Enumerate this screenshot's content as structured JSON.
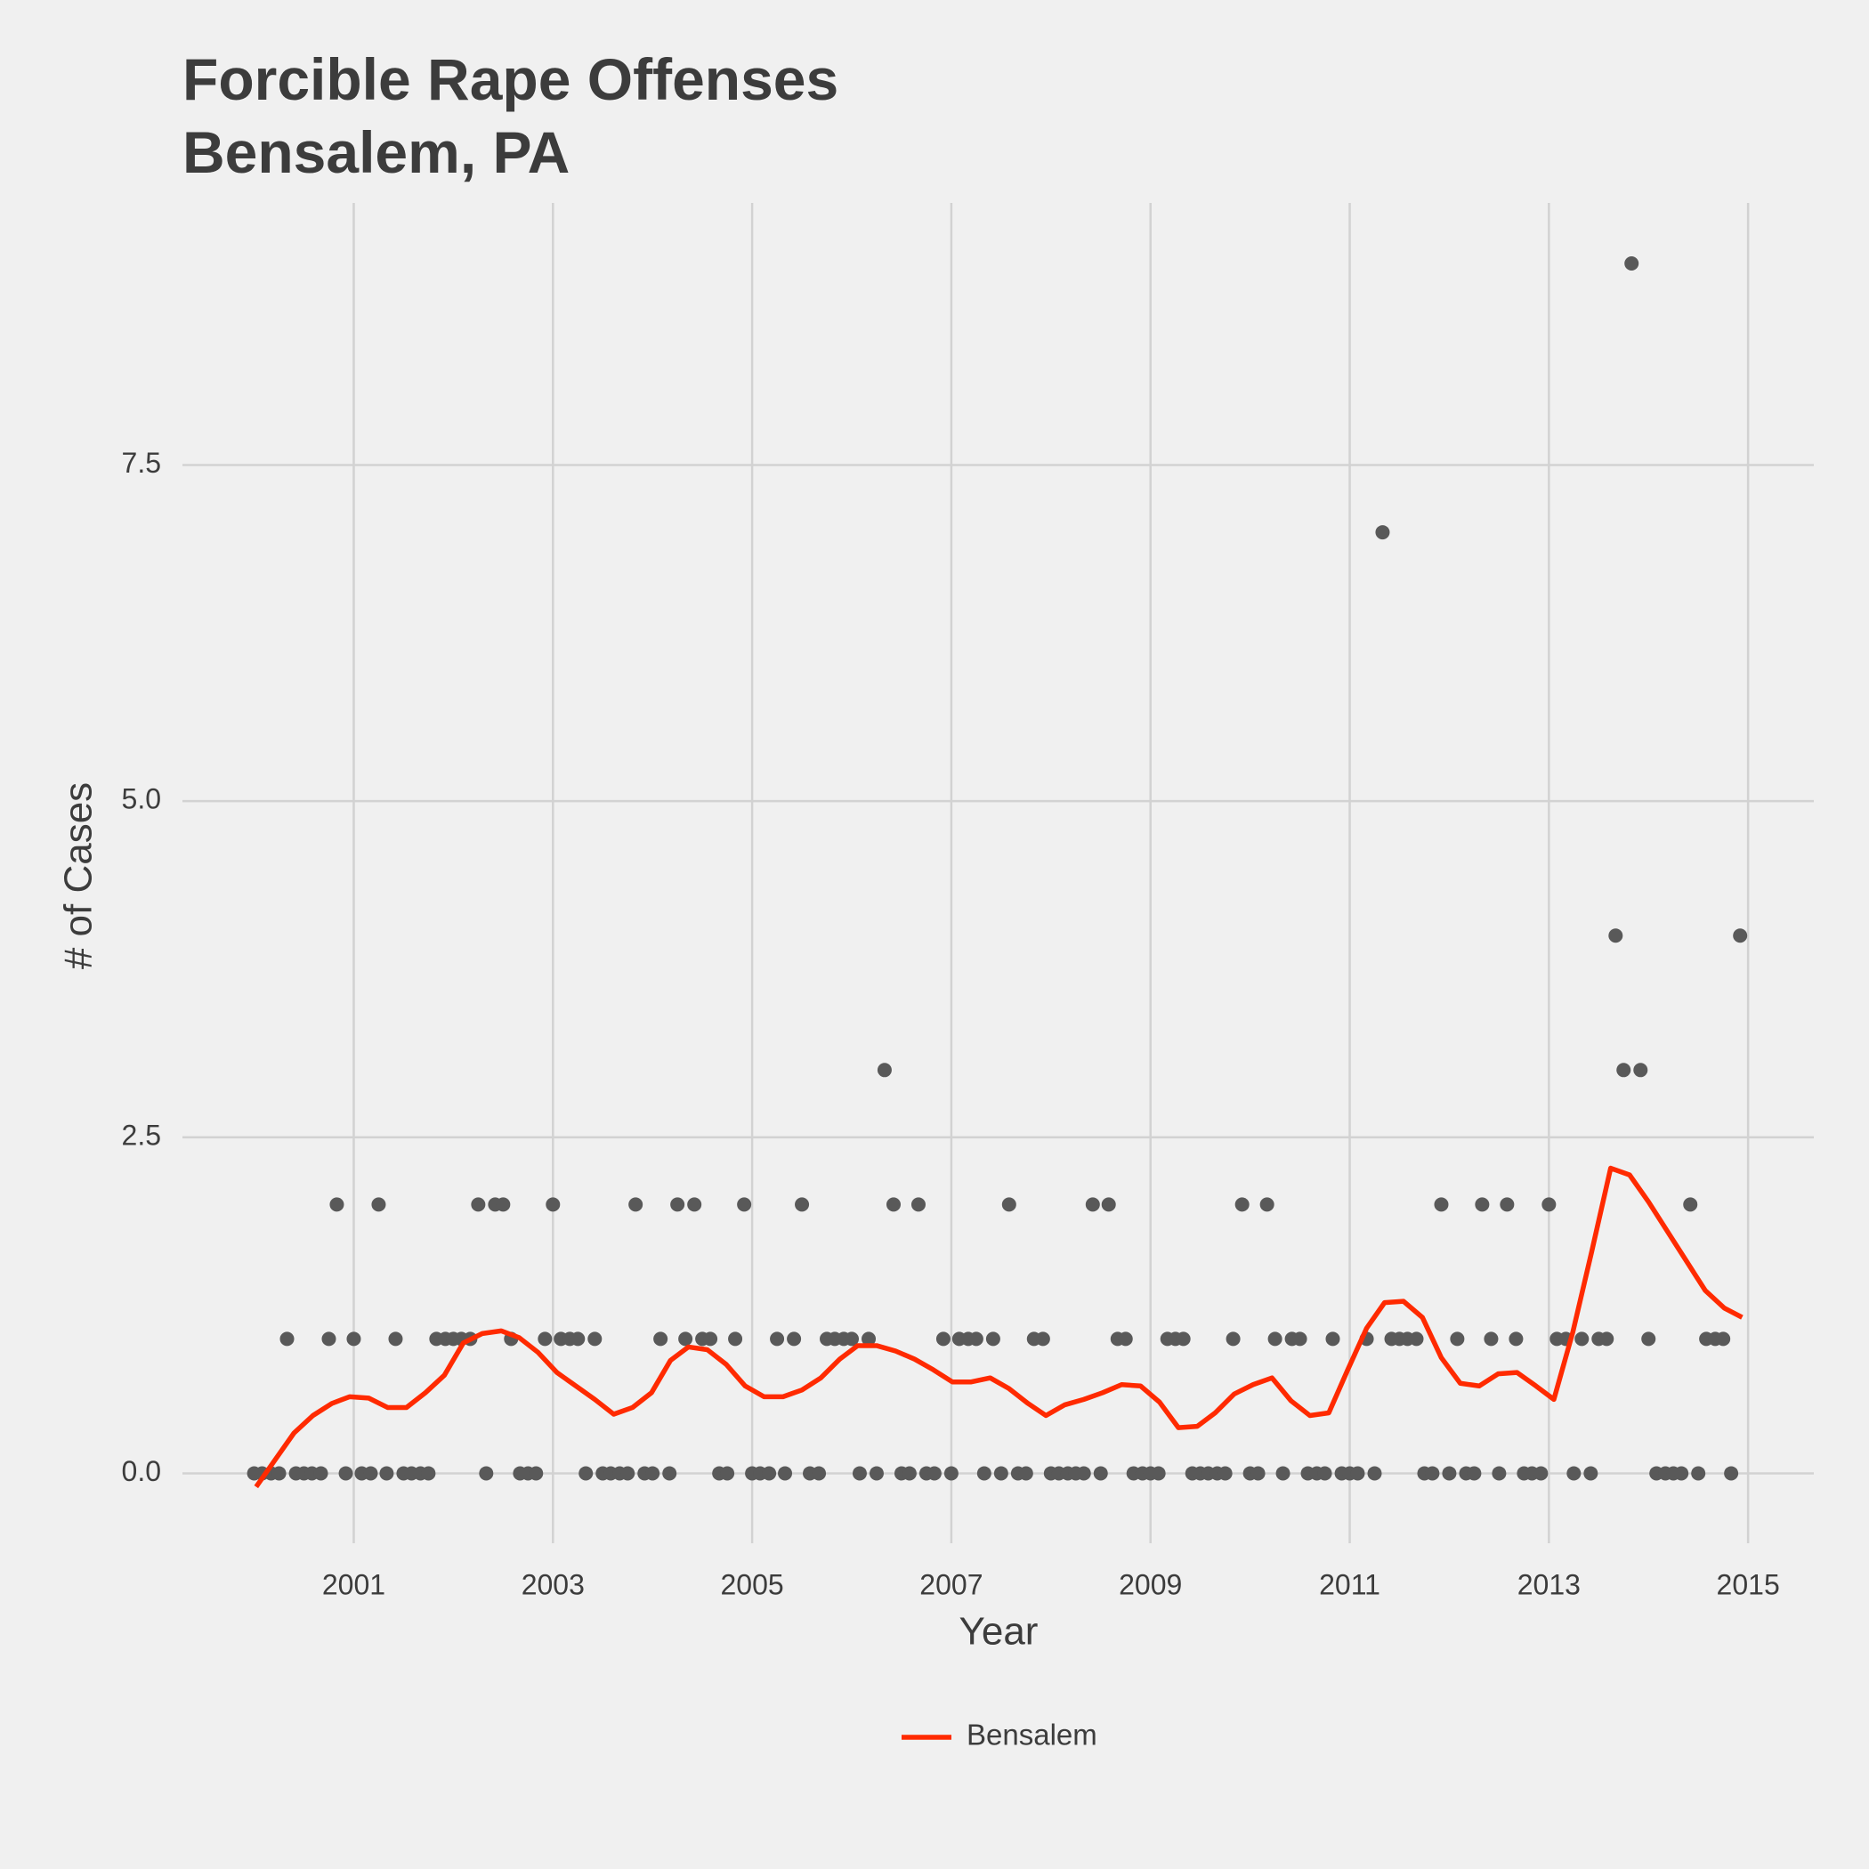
{
  "chart_data": {
    "type": "scatter",
    "title": "Forcible Rape Offenses",
    "subtitle": "Bensalem, PA",
    "x_label": "Year",
    "y_label": "# of Cases",
    "xlim": [
      1999.28,
      2015.66
    ],
    "ylim": [
      -0.52,
      9.45
    ],
    "xticks": [
      2001,
      2003,
      2005,
      2007,
      2009,
      2011,
      2013,
      2015
    ],
    "yticks": [
      {
        "value": 0,
        "label": "0.0"
      },
      2.5,
      {
        "value": 5,
        "label": "5.0"
      },
      7.5
    ],
    "grid": true,
    "legend_position": "bottom",
    "series": [
      {
        "type": "scatter",
        "color": "#595959",
        "x": [
          2000.0,
          2000.08,
          2000.17,
          2000.25,
          2000.33,
          2000.42,
          2000.5,
          2000.58,
          2000.67,
          2000.75,
          2000.83,
          2000.92,
          2001.0,
          2001.08,
          2001.17,
          2001.25,
          2001.33,
          2001.42,
          2001.5,
          2001.58,
          2001.67,
          2001.75,
          2001.83,
          2001.92,
          2002.0,
          2002.08,
          2002.17,
          2002.25,
          2002.33,
          2002.42,
          2002.5,
          2002.58,
          2002.67,
          2002.75,
          2002.83,
          2002.92,
          2003.0,
          2003.08,
          2003.17,
          2003.25,
          2003.33,
          2003.42,
          2003.5,
          2003.58,
          2003.67,
          2003.75,
          2003.83,
          2003.92,
          2004.0,
          2004.08,
          2004.17,
          2004.25,
          2004.33,
          2004.42,
          2004.5,
          2004.58,
          2004.67,
          2004.75,
          2004.83,
          2004.92,
          2005.0,
          2005.08,
          2005.17,
          2005.25,
          2005.33,
          2005.42,
          2005.5,
          2005.58,
          2005.67,
          2005.75,
          2005.83,
          2005.92,
          2006.0,
          2006.08,
          2006.17,
          2006.25,
          2006.33,
          2006.42,
          2006.5,
          2006.58,
          2006.67,
          2006.75,
          2006.83,
          2006.92,
          2007.0,
          2007.08,
          2007.17,
          2007.25,
          2007.33,
          2007.42,
          2007.5,
          2007.58,
          2007.67,
          2007.75,
          2007.83,
          2007.92,
          2008.0,
          2008.08,
          2008.17,
          2008.25,
          2008.33,
          2008.42,
          2008.5,
          2008.58,
          2008.67,
          2008.75,
          2008.83,
          2008.92,
          2009.0,
          2009.08,
          2009.17,
          2009.25,
          2009.33,
          2009.42,
          2009.5,
          2009.58,
          2009.67,
          2009.75,
          2009.83,
          2009.92,
          2010.0,
          2010.08,
          2010.17,
          2010.25,
          2010.33,
          2010.42,
          2010.5,
          2010.58,
          2010.67,
          2010.75,
          2010.83,
          2010.92,
          2011.0,
          2011.08,
          2011.17,
          2011.25,
          2011.33,
          2011.42,
          2011.5,
          2011.58,
          2011.67,
          2011.75,
          2011.83,
          2011.92,
          2012.0,
          2012.08,
          2012.17,
          2012.25,
          2012.33,
          2012.42,
          2012.5,
          2012.58,
          2012.67,
          2012.75,
          2012.83,
          2012.92,
          2013.0,
          2013.08,
          2013.17,
          2013.25,
          2013.33,
          2013.42,
          2013.5,
          2013.58,
          2013.67,
          2013.75,
          2013.83,
          2013.92,
          2014.0,
          2014.08,
          2014.17,
          2014.25,
          2014.33,
          2014.42,
          2014.5,
          2014.58,
          2014.67,
          2014.75,
          2014.83,
          2014.92
        ],
        "values": [
          0,
          0,
          0,
          0,
          1,
          0,
          0,
          0,
          0,
          1,
          2,
          0,
          1,
          0,
          0,
          2,
          0,
          1,
          0,
          0,
          0,
          0,
          1,
          1,
          1,
          1,
          1,
          2,
          0,
          2,
          2,
          1,
          0,
          0,
          0,
          1,
          2,
          1,
          1,
          1,
          0,
          1,
          0,
          0,
          0,
          0,
          2,
          0,
          0,
          1,
          0,
          2,
          1,
          2,
          1,
          1,
          0,
          0,
          1,
          2,
          0,
          0,
          0,
          1,
          0,
          1,
          2,
          0,
          0,
          1,
          1,
          1,
          1,
          0,
          1,
          0,
          3,
          2,
          0,
          0,
          2,
          0,
          0,
          1,
          0,
          1,
          1,
          1,
          0,
          1,
          0,
          2,
          0,
          0,
          1,
          1,
          0,
          0,
          0,
          0,
          0,
          2,
          0,
          2,
          1,
          1,
          0,
          0,
          0,
          0,
          1,
          1,
          1,
          0,
          0,
          0,
          0,
          0,
          1,
          2,
          0,
          0,
          2,
          1,
          0,
          1,
          1,
          0,
          0,
          0,
          1,
          0,
          0,
          0,
          1,
          0,
          7,
          1,
          1,
          1,
          1,
          0,
          0,
          2,
          0,
          1,
          0,
          0,
          2,
          1,
          0,
          2,
          1,
          0,
          0,
          0,
          2,
          1,
          1,
          0,
          1,
          0,
          1,
          1,
          4,
          3,
          9,
          3,
          1,
          0,
          0,
          0,
          0,
          2,
          0,
          1,
          1,
          1,
          0,
          4
        ]
      },
      {
        "type": "line",
        "name": "Bensalem",
        "color": "#ff2a00",
        "x": [
          2000.02,
          2000.21,
          2000.4,
          2000.59,
          2000.78,
          2000.96,
          2001.15,
          2001.34,
          2001.53,
          2001.72,
          2001.91,
          2002.1,
          2002.29,
          2002.48,
          2002.66,
          2002.85,
          2003.04,
          2003.23,
          2003.42,
          2003.61,
          2003.8,
          2003.99,
          2004.18,
          2004.36,
          2004.55,
          2004.74,
          2004.93,
          2005.12,
          2005.31,
          2005.5,
          2005.69,
          2005.88,
          2006.06,
          2006.25,
          2006.44,
          2006.63,
          2006.82,
          2007.01,
          2007.2,
          2007.39,
          2007.58,
          2007.77,
          2007.95,
          2008.14,
          2008.33,
          2008.52,
          2008.71,
          2008.9,
          2009.09,
          2009.28,
          2009.47,
          2009.65,
          2009.84,
          2010.03,
          2010.22,
          2010.41,
          2010.6,
          2010.79,
          2010.98,
          2011.17,
          2011.35,
          2011.54,
          2011.73,
          2011.92,
          2012.11,
          2012.3,
          2012.49,
          2012.68,
          2012.87,
          2013.05,
          2013.24,
          2013.43,
          2013.62,
          2013.81,
          2014.0,
          2014.19,
          2014.38,
          2014.57,
          2014.76,
          2014.94
        ],
        "values": [
          -0.1,
          0.1,
          0.3,
          0.43,
          0.52,
          0.57,
          0.56,
          0.49,
          0.49,
          0.6,
          0.73,
          0.97,
          1.04,
          1.06,
          1.01,
          0.9,
          0.75,
          0.65,
          0.55,
          0.44,
          0.49,
          0.6,
          0.84,
          0.94,
          0.92,
          0.81,
          0.65,
          0.57,
          0.57,
          0.62,
          0.71,
          0.85,
          0.95,
          0.95,
          0.91,
          0.85,
          0.77,
          0.68,
          0.68,
          0.71,
          0.63,
          0.52,
          0.43,
          0.51,
          0.55,
          0.6,
          0.66,
          0.65,
          0.53,
          0.34,
          0.35,
          0.45,
          0.59,
          0.66,
          0.71,
          0.54,
          0.43,
          0.45,
          0.77,
          1.08,
          1.27,
          1.28,
          1.16,
          0.86,
          0.67,
          0.65,
          0.74,
          0.75,
          0.65,
          0.55,
          1.05,
          1.65,
          2.27,
          2.22,
          2.02,
          1.8,
          1.58,
          1.36,
          1.23,
          1.16
        ]
      }
    ]
  }
}
